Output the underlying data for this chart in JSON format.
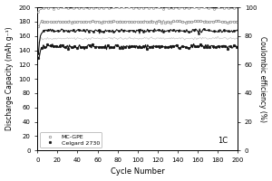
{
  "title": "",
  "xlabel": "Cycle Number",
  "ylabel_left": "Discharge Capacity (mAh g⁻¹)",
  "ylabel_right": "Coulombic efficiency (%)",
  "xlim": [
    0,
    200
  ],
  "ylim_left": [
    0,
    200
  ],
  "ylim_right": [
    0,
    100
  ],
  "xticks": [
    0,
    20,
    40,
    60,
    80,
    100,
    120,
    140,
    160,
    180,
    200
  ],
  "yticks_left": [
    0,
    20,
    40,
    60,
    80,
    100,
    120,
    140,
    160,
    180,
    200
  ],
  "yticks_right": [
    0,
    20,
    40,
    60,
    80,
    100
  ],
  "legend_labels": [
    "MC-GPE",
    "Celgard 2730"
  ],
  "annotation": "1C",
  "mc_gpe_color": "#888888",
  "celgard_color": "#111111",
  "background_color": "#ffffff"
}
